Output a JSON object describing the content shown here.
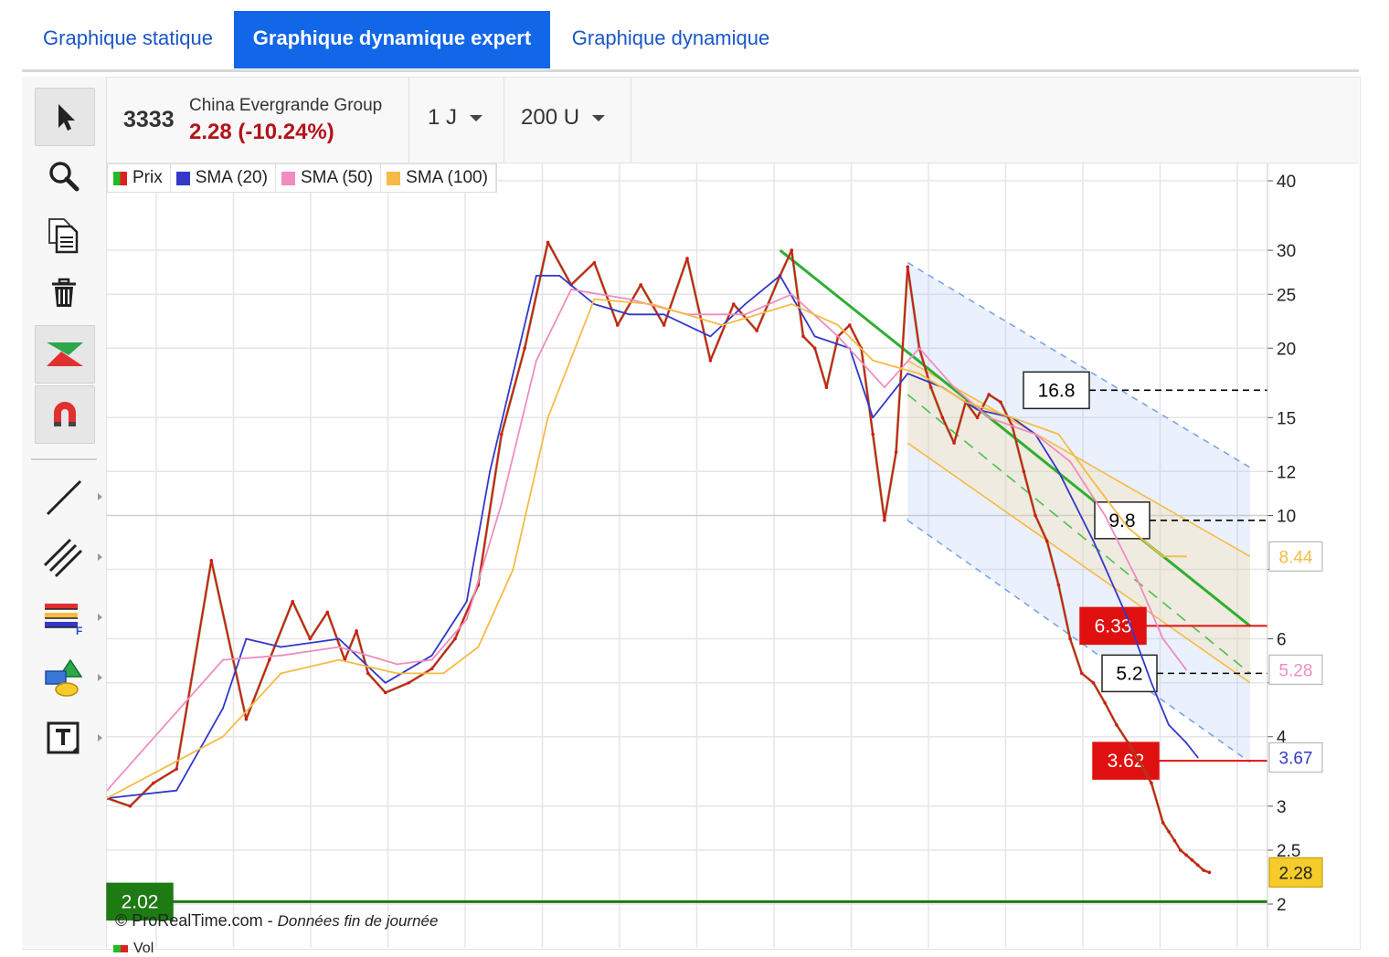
{
  "tabs": [
    "Graphique statique",
    "Graphique dynamique expert",
    "Graphique dynamique"
  ],
  "active_tab": 1,
  "toolbar": {
    "tools": [
      "cursor-icon",
      "zoom-icon",
      "copy-icon",
      "trash-icon",
      "pattern-icon",
      "magnet-icon",
      "line-tool-icon",
      "channel-tool-icon",
      "fibonacci-tool-icon",
      "shapes-tool-icon",
      "text-tool-icon"
    ]
  },
  "header": {
    "symbol": "3333",
    "name": "China Evergrande Group",
    "price_text": "2.28 (-10.24%)",
    "timeframe": "1 J",
    "units": "200 U"
  },
  "legend": [
    {
      "name": "Prix",
      "color": "#22bb22",
      "color2": "#e02020"
    },
    {
      "name": "SMA (20)",
      "color": "#3338c8"
    },
    {
      "name": "SMA (50)",
      "color": "#f08cc0"
    },
    {
      "name": "SMA (100)",
      "color": "#f6bb46"
    }
  ],
  "footer": {
    "copyright": "© ProRealTime.com",
    "separator": " - ",
    "note": "Données fin de journée",
    "volume_label": "Vol"
  },
  "chart_data": {
    "type": "line",
    "yscale": "log",
    "ylim": [
      1.95,
      42
    ],
    "yticks": [
      40,
      30,
      25,
      20,
      15,
      12,
      10,
      8,
      6,
      5,
      4,
      3,
      2.5,
      2
    ],
    "ytick_labels": [
      "40",
      "30",
      "25",
      "20",
      "15",
      "12",
      "10",
      "",
      "6",
      "",
      "4",
      "3",
      "2.5",
      "2"
    ],
    "grid": true,
    "legend_position": "top-left",
    "series": [
      {
        "name": "Prix",
        "color": "#d81818",
        "x": [
          0,
          4,
          8,
          12,
          18,
          24,
          28,
          32,
          35,
          38,
          41,
          43,
          45,
          48,
          52,
          56,
          60,
          64,
          68,
          72,
          76,
          80,
          84,
          88,
          92,
          96,
          100,
          104,
          108,
          112,
          116,
          118,
          120,
          122,
          124,
          126,
          128,
          130,
          132,
          134,
          136,
          138,
          140,
          142,
          144,
          146,
          148,
          150,
          152,
          154,
          156,
          158,
          160,
          162,
          164,
          166,
          168,
          170,
          172,
          174,
          176,
          178,
          180,
          182,
          183,
          184,
          185,
          186,
          187,
          188,
          189,
          190
        ],
        "values": [
          3.1,
          3.0,
          3.3,
          3.5,
          8.3,
          4.3,
          5.5,
          7.0,
          6.0,
          6.7,
          5.5,
          6.2,
          5.2,
          4.8,
          5.0,
          5.3,
          6.0,
          7.5,
          14.0,
          20.0,
          31.0,
          26.0,
          28.5,
          22.0,
          26.0,
          22.0,
          29.0,
          19.0,
          24.0,
          21.5,
          27.0,
          30.0,
          21.0,
          20.0,
          17.0,
          21.0,
          22.0,
          20.0,
          14.0,
          9.8,
          13.0,
          28.0,
          20.0,
          17.0,
          15.0,
          13.5,
          16.0,
          15.0,
          16.5,
          16.0,
          14.5,
          12.0,
          10.0,
          9.0,
          7.5,
          6.0,
          5.2,
          5.0,
          4.6,
          4.2,
          3.9,
          3.6,
          3.3,
          2.8,
          2.7,
          2.6,
          2.5,
          2.45,
          2.4,
          2.35,
          2.3,
          2.28
        ]
      },
      {
        "name": "SMA (20)",
        "color": "#3338c8",
        "x": [
          0,
          12,
          20,
          24,
          30,
          40,
          48,
          56,
          62,
          66,
          70,
          74,
          78,
          84,
          90,
          96,
          104,
          110,
          116,
          122,
          128,
          132,
          138,
          144,
          150,
          156,
          160,
          164,
          170,
          176,
          180,
          183,
          186,
          188
        ],
        "values": [
          3.1,
          3.2,
          4.5,
          6.0,
          5.8,
          6.0,
          5.0,
          5.6,
          7.0,
          12.0,
          18.0,
          27.0,
          27.0,
          24.0,
          23.0,
          23.0,
          21.0,
          24.0,
          27.0,
          21.0,
          20.0,
          15.0,
          18.0,
          17.0,
          15.5,
          15.0,
          14.0,
          12.0,
          9.0,
          6.5,
          5.0,
          4.2,
          3.9,
          3.67
        ]
      },
      {
        "name": "SMA (50)",
        "color": "#f08cc0",
        "x": [
          0,
          20,
          30,
          40,
          50,
          56,
          62,
          68,
          74,
          80,
          90,
          100,
          110,
          118,
          126,
          134,
          140,
          146,
          152,
          160,
          166,
          172,
          178,
          182,
          186
        ],
        "values": [
          3.2,
          5.5,
          5.6,
          5.8,
          5.4,
          5.5,
          6.5,
          10.5,
          19.0,
          25.5,
          24.5,
          23.0,
          23.0,
          25.0,
          21.0,
          17.0,
          20.0,
          17.0,
          15.0,
          14.0,
          12.5,
          10.0,
          7.5,
          6.0,
          5.28
        ]
      },
      {
        "name": "SMA (100)",
        "color": "#f6bb46",
        "x": [
          0,
          20,
          30,
          40,
          50,
          58,
          64,
          70,
          76,
          84,
          94,
          106,
          118,
          126,
          132,
          140,
          148,
          156,
          164,
          170,
          176,
          182,
          186
        ],
        "values": [
          3.1,
          4.0,
          5.2,
          5.5,
          5.2,
          5.2,
          5.8,
          8.0,
          15.0,
          24.5,
          24.0,
          22.0,
          24.0,
          22.0,
          19.0,
          18.0,
          16.0,
          15.0,
          14.0,
          11.5,
          9.5,
          8.44,
          8.44
        ]
      }
    ],
    "price_labels": [
      {
        "text": "8.44",
        "value": 8.44,
        "color": "#f6bb46"
      },
      {
        "text": "5.28",
        "value": 5.28,
        "color": "#f08cc0"
      },
      {
        "text": "3.67",
        "value": 3.67,
        "color": "#3338c8"
      },
      {
        "text": "2.28",
        "value": 2.28,
        "color": "#f6cc2a"
      }
    ],
    "levels": [
      {
        "text": "16.8",
        "value": 16.8,
        "style": "dashed",
        "color": "#000000"
      },
      {
        "text": "9.8",
        "value": 9.8,
        "style": "dashed",
        "color": "#000000"
      },
      {
        "text": "6.33",
        "value": 6.33,
        "style": "solid",
        "color": "#e01010"
      },
      {
        "text": "5.2",
        "value": 5.2,
        "style": "dashed",
        "color": "#000000"
      },
      {
        "text": "3.62",
        "value": 3.62,
        "style": "solid",
        "color": "#e01010"
      },
      {
        "text": "2.02",
        "value": 2.02,
        "style": "solid",
        "color": "#1e7a12"
      }
    ],
    "trendline": {
      "color": "#2fae2f",
      "x": [
        116,
        197
      ],
      "values": [
        30.0,
        6.33
      ]
    },
    "regression_channel": {
      "color": "#7aa4e6",
      "x_start": 138,
      "x_end": 197,
      "mid": [
        16.5,
        5.2
      ],
      "upper": [
        28.5,
        12.2
      ],
      "lower": [
        9.8,
        3.6
      ],
      "inner_upper": [
        19.0,
        8.44
      ],
      "inner_lower": [
        13.5,
        5.0
      ]
    }
  }
}
